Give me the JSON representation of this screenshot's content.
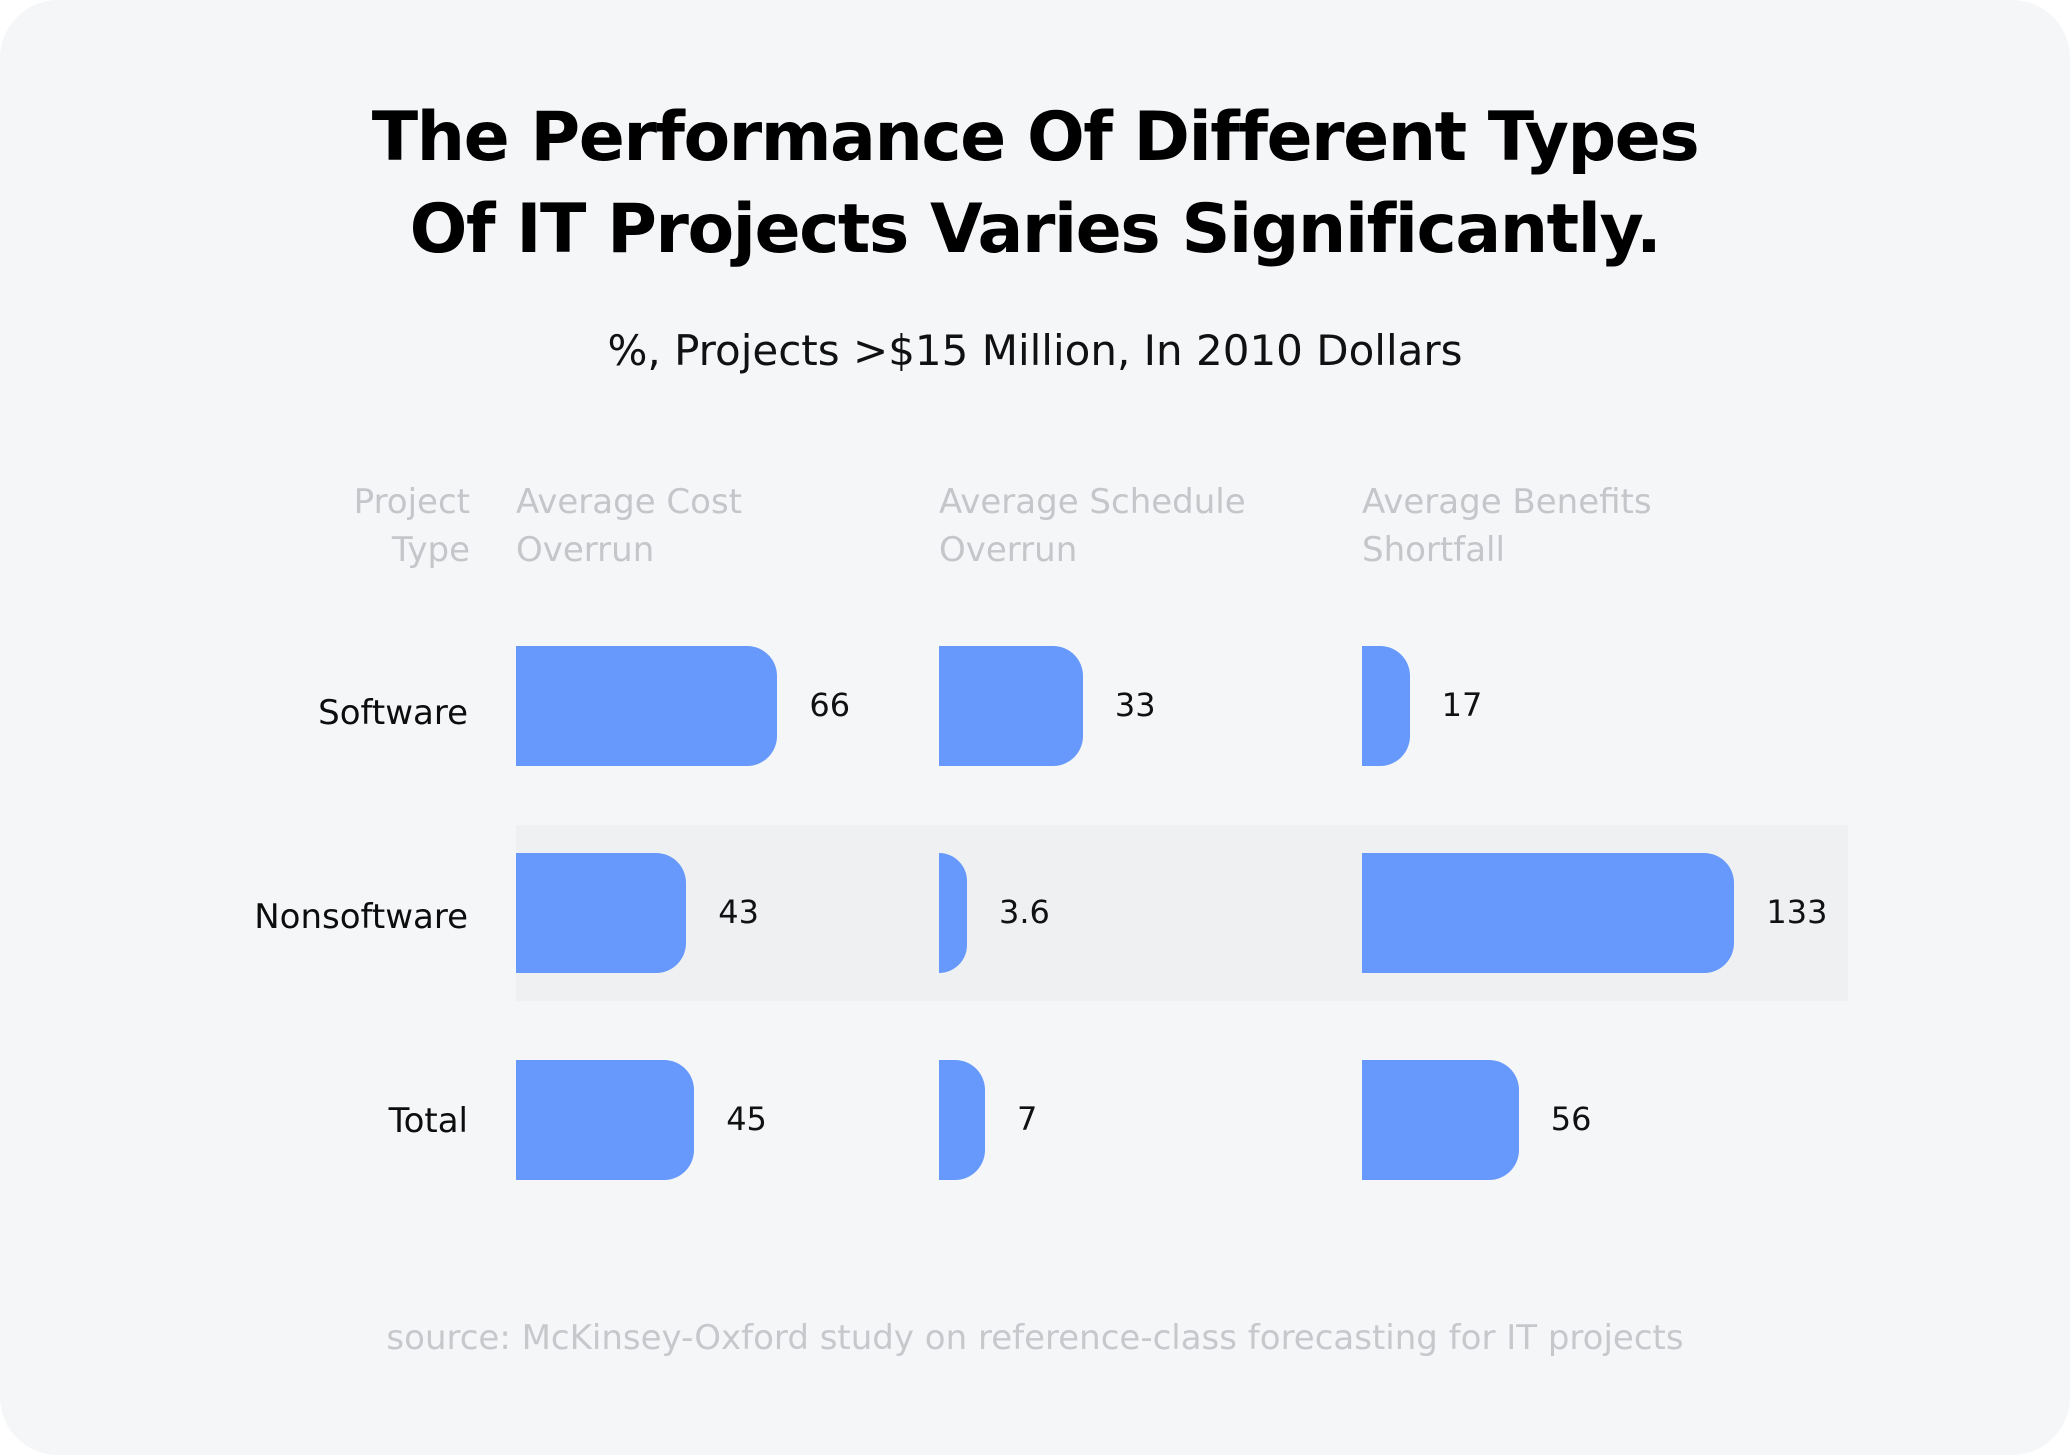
{
  "title_lines": [
    "The Performance Of Different Types",
    "Of IT Projects Varies Significantly."
  ],
  "subtitle": "%, Projects >$15 Million, In 2010 Dollars",
  "headers": {
    "type": [
      "Project",
      "Type"
    ],
    "columns": [
      [
        "Average Cost",
        "Overrun"
      ],
      [
        "Average Schedule",
        "Overrun"
      ],
      [
        "Average Benefits",
        "Shortfall"
      ]
    ]
  },
  "source": "source:  McKinsey-Oxford study on reference-class forecasting for IT projects",
  "colors": {
    "bar": "#6699fb",
    "band": "#eef0f2",
    "background": "#f4f6f8"
  },
  "chart_data": {
    "type": "bar",
    "orientation": "horizontal",
    "title": "The Performance Of Different Types Of IT Projects Varies Significantly.",
    "subtitle": "%, Projects >$15 Million, In 2010 Dollars",
    "categories": [
      "Software",
      "Nonsoftware",
      "Total"
    ],
    "category_axis_label": "Project Type",
    "highlighted_category": "Nonsoftware",
    "series": [
      {
        "name": "Average Cost Overrun",
        "values": [
          66,
          43,
          45
        ]
      },
      {
        "name": "Average Schedule Overrun",
        "values": [
          33,
          3.6,
          7
        ]
      },
      {
        "name": "Average Benefits Shortfall",
        "values": [
          17,
          133,
          56
        ]
      }
    ],
    "value_labels": [
      [
        "66",
        "43",
        "45"
      ],
      [
        "33",
        "3.6",
        "7"
      ],
      [
        "17",
        "133",
        "56"
      ]
    ],
    "unit": "%",
    "grid": false,
    "legend": "none"
  }
}
